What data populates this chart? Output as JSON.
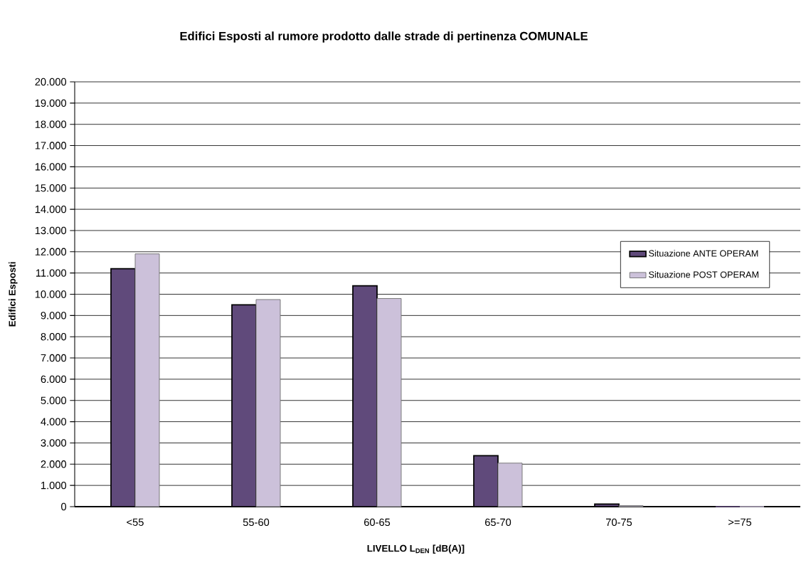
{
  "chart_data": {
    "type": "bar",
    "title": "Edifici Esposti al rumore prodotto dalle strade di pertinenza COMUNALE",
    "xlabel": "LIVELLO L$_{DEN}$ [dB(A)]",
    "ylabel": "Edifici Esposti",
    "categories": [
      "<55",
      "55-60",
      "60-65",
      "65-70",
      "70-75",
      ">=75"
    ],
    "series": [
      {
        "name": "Situazione ANTE OPERAM",
        "color": "#604a7b",
        "values": [
          11200,
          9500,
          10400,
          2400,
          120,
          0
        ]
      },
      {
        "name": "Situazione POST OPERAM",
        "color": "#ccc1da",
        "values": [
          11900,
          9750,
          9800,
          2050,
          50,
          0
        ]
      }
    ],
    "ylim": [
      0,
      20000
    ],
    "yticks": [
      0,
      {
        "value": 1000,
        "label": "1.000"
      },
      {
        "value": 2000,
        "label": "2.000"
      },
      {
        "value": 3000,
        "label": "3.000"
      },
      {
        "value": 4000,
        "label": "4.000"
      },
      {
        "value": 5000,
        "label": "5.000"
      },
      {
        "value": 6000,
        "label": "6.000"
      },
      {
        "value": 7000,
        "label": "7.000"
      },
      {
        "value": 8000,
        "label": "8.000"
      },
      {
        "value": 9000,
        "label": "9.000"
      },
      {
        "value": 10000,
        "label": "10.000"
      },
      {
        "value": 11000,
        "label": "11.000"
      },
      {
        "value": 12000,
        "label": "12.000"
      },
      {
        "value": 13000,
        "label": "13.000"
      },
      {
        "value": 14000,
        "label": "14.000"
      },
      {
        "value": 15000,
        "label": "15.000"
      },
      {
        "value": 16000,
        "label": "16.000"
      },
      {
        "value": 17000,
        "label": "17.000"
      },
      {
        "value": 18000,
        "label": "18.000"
      },
      {
        "value": 19000,
        "label": "19.000"
      },
      {
        "value": 20000,
        "label": "20.000"
      }
    ],
    "grid": "y",
    "legend": "right"
  }
}
